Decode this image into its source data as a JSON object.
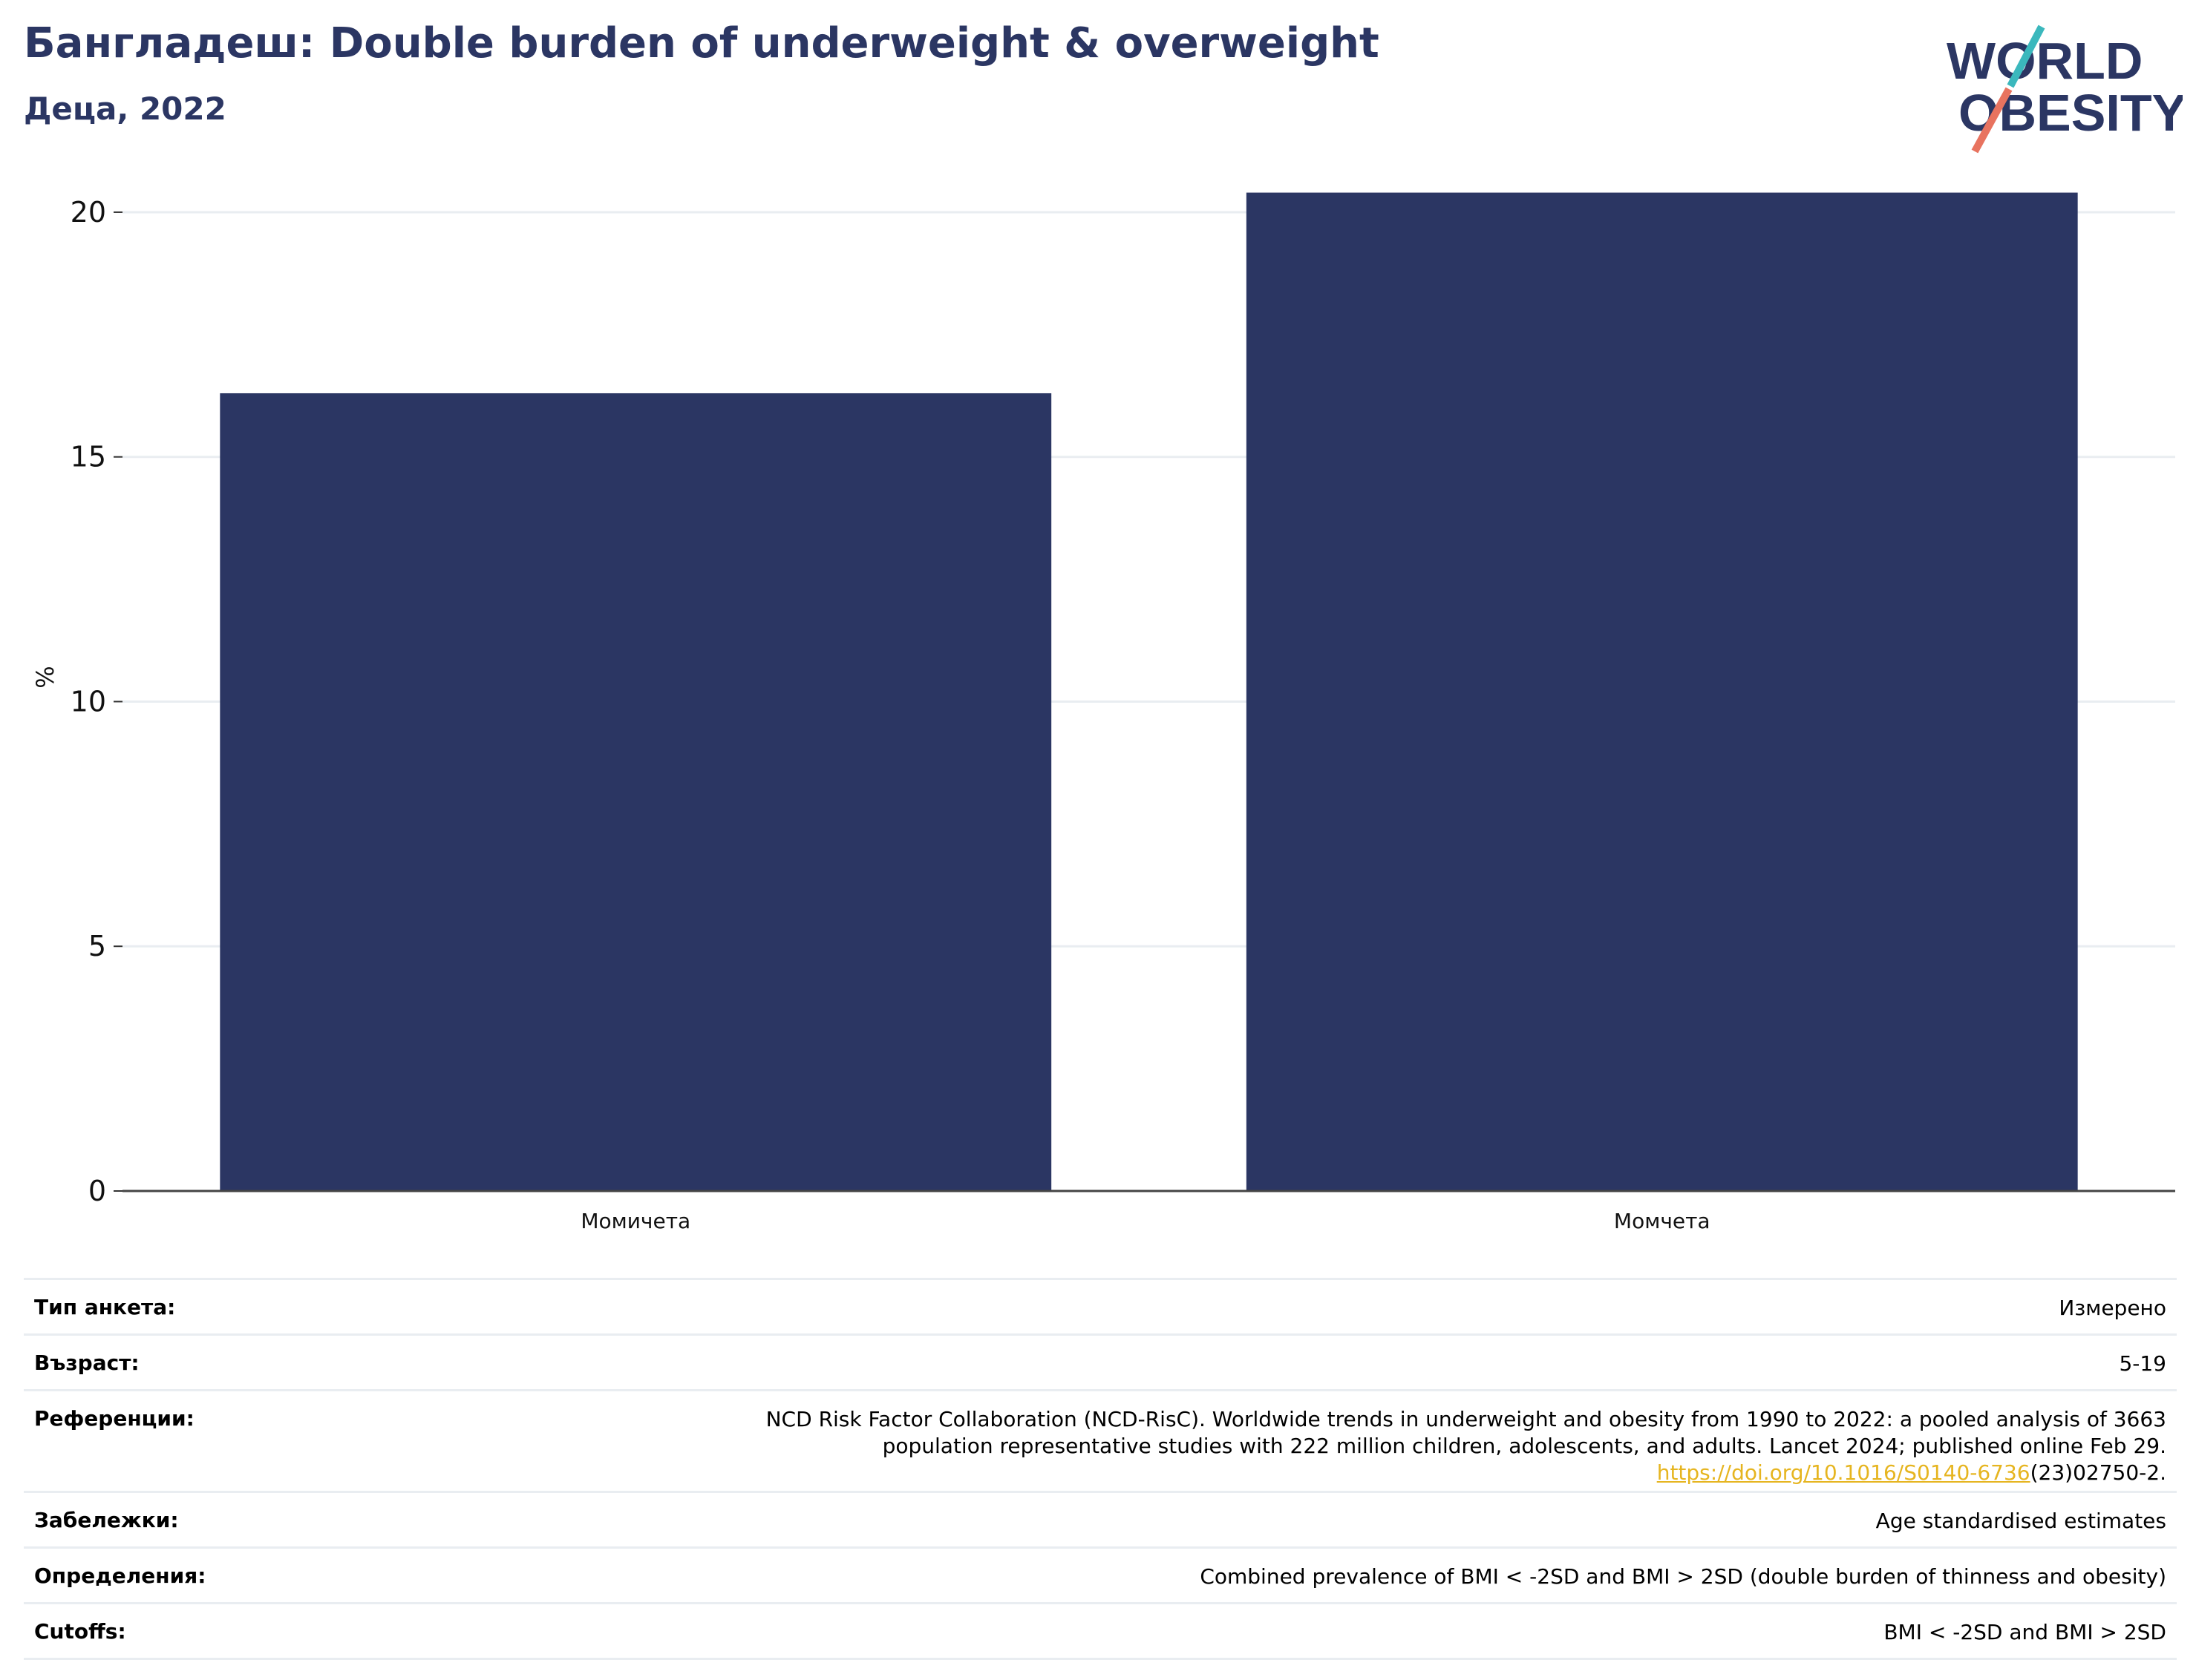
{
  "header": {
    "title": "Бангладеш: Double burden of underweight & overweight",
    "subtitle": "Деца, 2022"
  },
  "logo": {
    "line1": "WORLD",
    "line2": "OBESITY",
    "colors": {
      "text": "#2b3663",
      "slash_top": "#3bb8bd",
      "slash_bottom": "#e8735f"
    }
  },
  "chart_data": {
    "type": "bar",
    "categories": [
      "Момичета",
      "Момчета"
    ],
    "values": [
      16.3,
      20.4
    ],
    "ylabel": "%",
    "ylim": [
      0,
      21
    ],
    "yticks": [
      0,
      5,
      10,
      15,
      20
    ],
    "grid": true,
    "bar_color": "#2b3663"
  },
  "info": {
    "survey_type": {
      "label": "Тип анкета:",
      "value": "Измерено"
    },
    "age": {
      "label": "Възраст:",
      "value": "5-19"
    },
    "references": {
      "label": "Референции:",
      "line1": "NCD Risk Factor Collaboration (NCD-RisC). Worldwide trends in underweight and obesity from 1990 to 2022: a pooled analysis of 3663",
      "line2": "population representative studies with 222 million children, adolescents, and adults. Lancet 2024; published online Feb 29.",
      "link_text": "https://doi.org/10.1016/S0140-6736",
      "link_suffix": "(23)02750-2."
    },
    "notes": {
      "label": "Забележки:",
      "value": "Age standardised estimates"
    },
    "definitions": {
      "label": "Определения:",
      "value": "Combined prevalence of BMI < -2SD and BMI > 2SD (double burden of thinness and obesity)"
    },
    "cutoffs": {
      "label": "Cutoffs:",
      "value": "BMI < -2SD and BMI > 2SD"
    }
  }
}
